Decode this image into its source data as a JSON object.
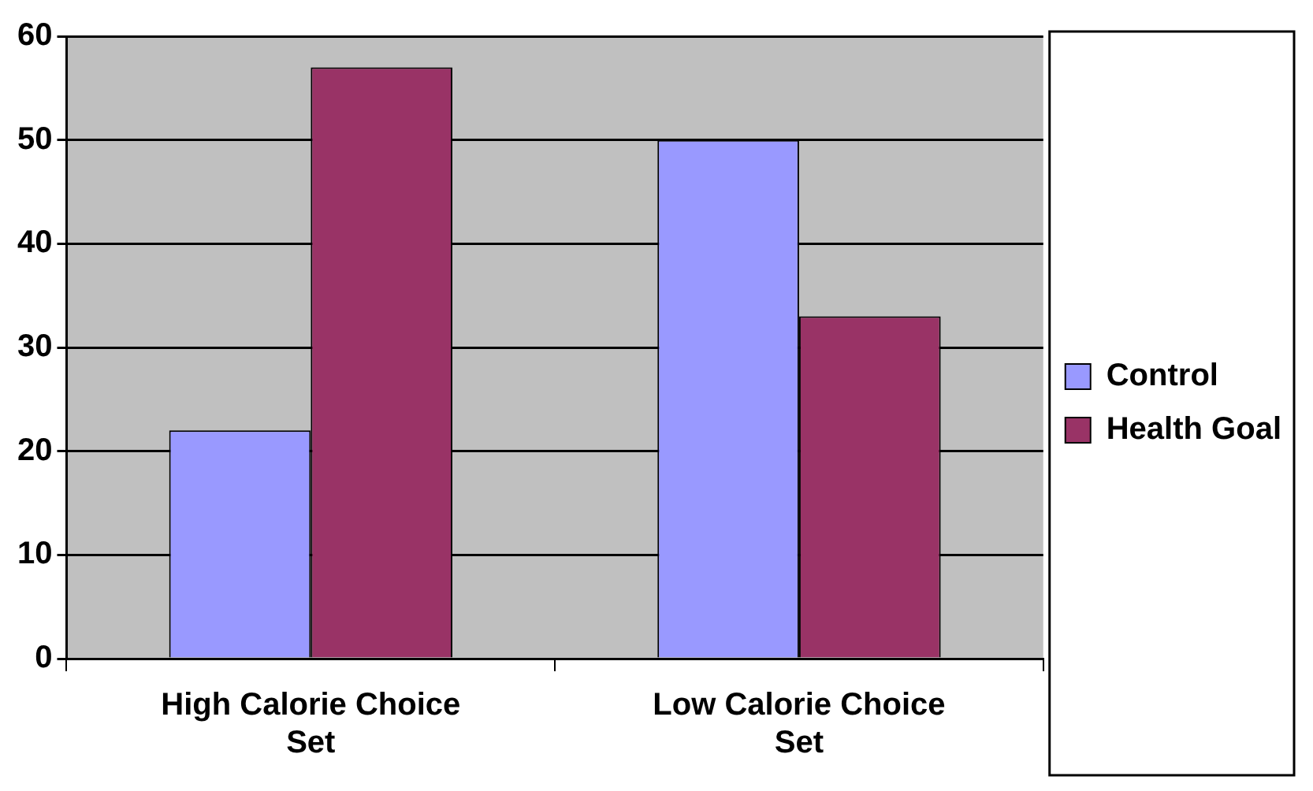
{
  "chart_data": {
    "type": "bar",
    "categories": [
      "High Calorie Choice Set",
      "Low Calorie Choice Set"
    ],
    "series": [
      {
        "name": "Control",
        "color": "#9999ff",
        "values": [
          22,
          50
        ]
      },
      {
        "name": "Health Goal",
        "color": "#993366",
        "values": [
          57,
          33
        ]
      }
    ],
    "ylim": [
      0,
      60
    ],
    "yticks": [
      0,
      10,
      20,
      30,
      40,
      50,
      60
    ],
    "grid": "y",
    "legend": "right"
  }
}
